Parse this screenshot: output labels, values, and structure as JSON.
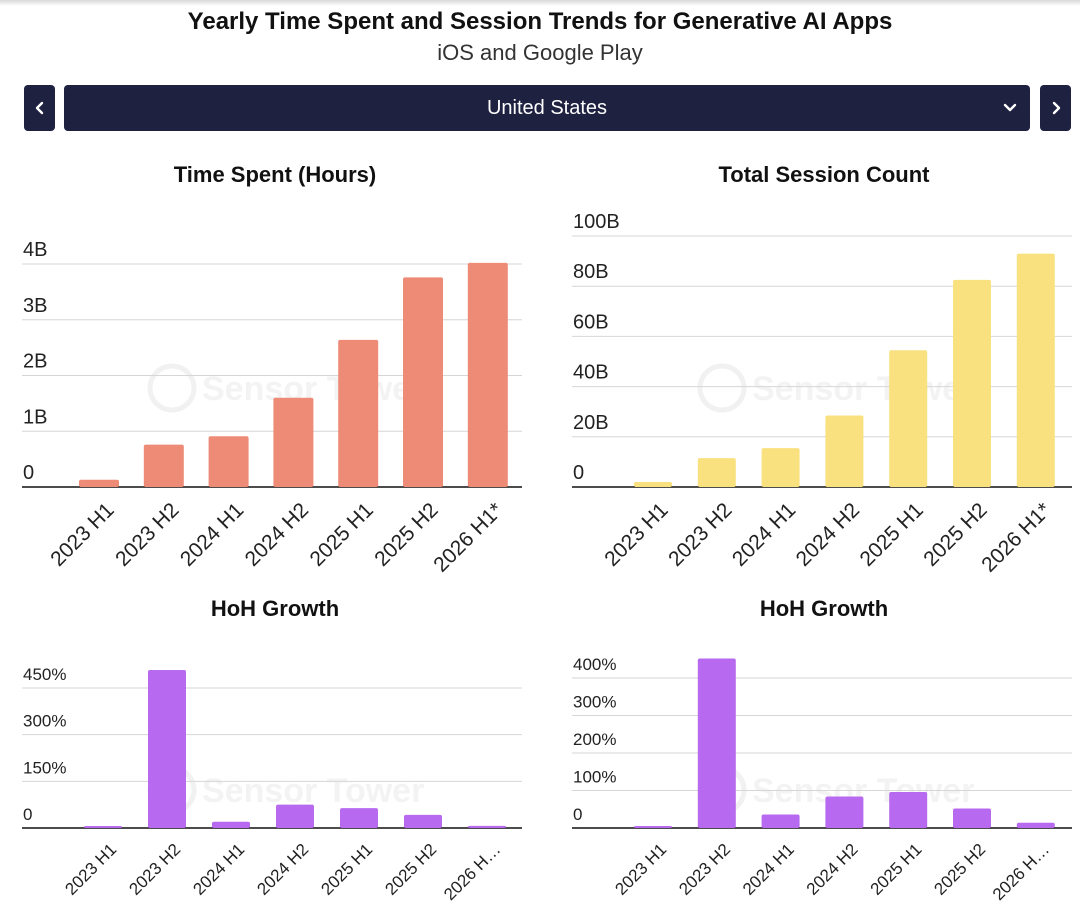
{
  "header": {
    "title": "Yearly Time Spent and Session Trends for Generative AI Apps",
    "subtitle": "iOS and Google Play"
  },
  "selector": {
    "value": "United States",
    "prev_icon": "chevron-left-icon",
    "next_icon": "chevron-right-icon",
    "dropdown_icon": "chevron-down-icon"
  },
  "watermark": "Sensor Tower",
  "chart_data": [
    {
      "id": "time-spent",
      "type": "bar",
      "title": "Time Spent (Hours)",
      "color": "#ee8b77",
      "categories": [
        "2023 H1",
        "2023 H2",
        "2024 H1",
        "2024 H2",
        "2025 H1",
        "2025 H2",
        "2026 H1*"
      ],
      "values": [
        0.13,
        0.76,
        0.91,
        1.6,
        2.64,
        3.76,
        4.02
      ],
      "unit": "hours (billions)",
      "yticks": [
        0,
        1,
        2,
        3,
        4
      ],
      "yticklabels": [
        "0",
        "1B",
        "2B",
        "3B",
        "4B"
      ],
      "ylim": [
        0,
        4.5
      ],
      "grid": true,
      "xtick_rotation": -45
    },
    {
      "id": "session-count",
      "type": "bar",
      "title": "Total Session Count",
      "color": "#f9e17f",
      "categories": [
        "2023 H1",
        "2023 H2",
        "2024 H1",
        "2024 H2",
        "2025 H1",
        "2025 H2",
        "2026 H1*"
      ],
      "values": [
        2,
        11.5,
        15.5,
        28.5,
        54.5,
        82.5,
        93
      ],
      "unit": "sessions (billions)",
      "yticks": [
        0,
        20,
        40,
        60,
        80,
        100
      ],
      "yticklabels": [
        "0",
        "20B",
        "40B",
        "60B",
        "80B",
        "100B"
      ],
      "ylim": [
        0,
        100
      ],
      "grid": true,
      "xtick_rotation": -45
    },
    {
      "id": "time-growth",
      "type": "bar",
      "title": "HoH Growth",
      "color": "#b76af0",
      "categories": [
        "2023 H1",
        "2023 H2",
        "2024 H1",
        "2024 H2",
        "2025 H1",
        "2025 H2",
        "2026 H1*"
      ],
      "xticklabels": [
        "2023 H1",
        "2023 H2",
        "2024 H1",
        "2024 H2",
        "2025 H1",
        "2025 H2",
        "2026 H…"
      ],
      "values": [
        5,
        508,
        20,
        75,
        64,
        42,
        7
      ],
      "unit": "%",
      "yticks": [
        0,
        150,
        300,
        450
      ],
      "yticklabels": [
        "0",
        "150%",
        "300%",
        "450%"
      ],
      "ylim": [
        0,
        510
      ],
      "grid": true,
      "xtick_rotation": -45
    },
    {
      "id": "session-growth",
      "type": "bar",
      "title": "HoH Growth",
      "color": "#b76af0",
      "categories": [
        "2023 H1",
        "2023 H2",
        "2024 H1",
        "2024 H2",
        "2025 H1",
        "2025 H2",
        "2026 H1*"
      ],
      "xticklabels": [
        "2023 H1",
        "2023 H2",
        "2024 H1",
        "2024 H2",
        "2025 H1",
        "2025 H2",
        "2026 H…"
      ],
      "values": [
        3,
        452,
        36,
        84,
        96,
        52,
        14
      ],
      "unit": "%",
      "yticks": [
        0,
        100,
        200,
        300,
        400
      ],
      "yticklabels": [
        "0",
        "100%",
        "200%",
        "300%",
        "400%"
      ],
      "ylim": [
        0,
        450
      ],
      "grid": true,
      "xtick_rotation": -45
    }
  ]
}
